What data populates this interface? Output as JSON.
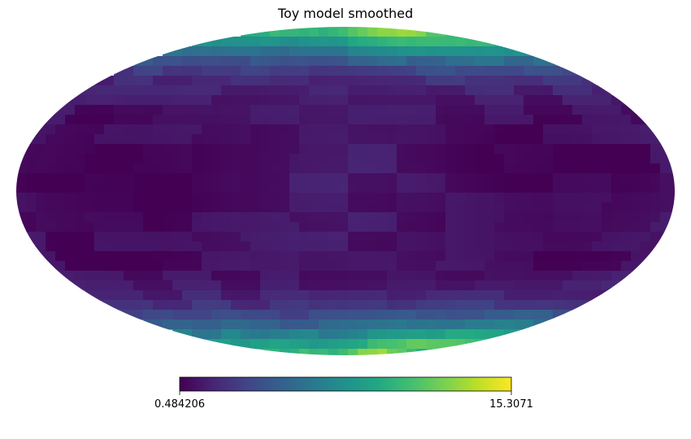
{
  "chart_data": {
    "type": "heatmap",
    "projection": "mollweide",
    "title": "Toy model smoothed",
    "colormap": "viridis",
    "colorbar": {
      "min_label": "0.484206",
      "max_label": "15.3071",
      "min": 0.484206,
      "max": 15.3071,
      "orientation": "horizontal",
      "placement": "bottom"
    },
    "colormap_stops": [
      "#440154",
      "#482475",
      "#414487",
      "#355f8d",
      "#2a788e",
      "#21918c",
      "#22a884",
      "#44bf70",
      "#7ad151",
      "#bddf26",
      "#fde725"
    ],
    "description_values": {
      "polar_regions": "high (green to yellow)",
      "mid_latitudes": "low (dark purple)",
      "max_near_lon": 60
    }
  }
}
